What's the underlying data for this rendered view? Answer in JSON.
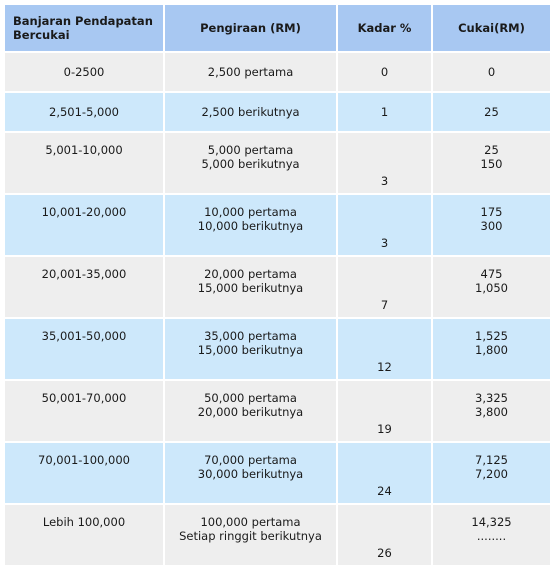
{
  "headers": {
    "band": "Banjaran Pendapatan Bercukai",
    "calc": "Pengiraan (RM)",
    "rate": "Kadar %",
    "tax": "Cukai(RM)"
  },
  "rows": [
    {
      "band": "0-2500",
      "calc": [
        "2,500 pertama"
      ],
      "rate": "0",
      "tax": [
        "0"
      ]
    },
    {
      "band": "2,501-5,000",
      "calc": [
        "2,500 berikutnya"
      ],
      "rate": "1",
      "tax": [
        "25"
      ]
    },
    {
      "band": "5,001-10,000",
      "calc": [
        "5,000 pertama",
        "5,000 berikutnya"
      ],
      "rate": "3",
      "tax": [
        "25",
        "150"
      ]
    },
    {
      "band": "10,001-20,000",
      "calc": [
        "10,000 pertama",
        "10,000 berikutnya"
      ],
      "rate": "3",
      "tax": [
        "175",
        "300"
      ]
    },
    {
      "band": "20,001-35,000",
      "calc": [
        "20,000 pertama",
        "15,000 berikutnya"
      ],
      "rate": "7",
      "tax": [
        "475",
        "1,050"
      ]
    },
    {
      "band": "35,001-50,000",
      "calc": [
        "35,000 pertama",
        "15,000 berikutnya"
      ],
      "rate": "12",
      "tax": [
        "1,525",
        "1,800"
      ]
    },
    {
      "band": "50,001-70,000",
      "calc": [
        "50,000 pertama",
        "20,000 berikutnya"
      ],
      "rate": "19",
      "tax": [
        "3,325",
        "3,800"
      ]
    },
    {
      "band": "70,001-100,000",
      "calc": [
        "70,000 pertama",
        "30,000 berikutnya"
      ],
      "rate": "24",
      "tax": [
        "7,125",
        "7,200"
      ]
    },
    {
      "band": "Lebih 100,000",
      "calc": [
        "100,000 pertama",
        "Setiap ringgit berikutnya"
      ],
      "rate": "26",
      "tax": [
        "14,325",
        "........"
      ]
    }
  ]
}
